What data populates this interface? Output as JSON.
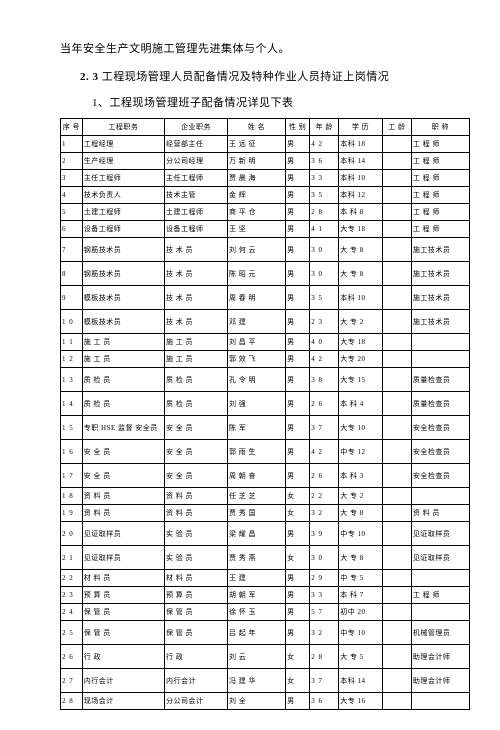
{
  "heading1": "当年安全生产文明施工管理先进集体与个人。",
  "heading2_prefix": "2. 3 ",
  "heading2": "工程现场管理人员配备情况及特种作业人员持证上岗情况",
  "heading3": "1、工程现场管理班子配备情况详见下表",
  "columns": [
    "序 号",
    "工程职务",
    "企业职务",
    "姓 名",
    "性 别",
    "年 龄",
    "学 历",
    "工 龄",
    "职 称"
  ],
  "rows": [
    {
      "seq": "1",
      "role": "工程经理",
      "corp": "经营部主任",
      "name": "王 远 征",
      "sex": "男",
      "age": "4 2",
      "edu": "本科 18",
      "exp": "",
      "title": "工 程 师"
    },
    {
      "seq": "2",
      "role": "生产经理",
      "corp": "分公司经理",
      "name": "万 新 明",
      "sex": "男",
      "age": "3 6",
      "edu": "本科 14",
      "exp": "",
      "title": "工 程 师"
    },
    {
      "seq": "3",
      "role": "主任工程师",
      "corp": "主任工程师",
      "name": "贾 晨 海",
      "sex": "男",
      "age": "3 3",
      "edu": "本科 10",
      "exp": "",
      "title": "工 程 师"
    },
    {
      "seq": "4",
      "role": "技术负责人",
      "corp": "技术主管",
      "name": "金    辉",
      "sex": "男",
      "age": "3 5",
      "edu": "本科 12",
      "exp": "",
      "title": "工 程 师"
    },
    {
      "seq": "5",
      "role": "土建工程师",
      "corp": "土建工程师",
      "name": "商 平 仓",
      "sex": "男",
      "age": "2 8",
      "edu": "本 科 8",
      "exp": "",
      "title": "工 程 师"
    },
    {
      "seq": "6",
      "role": "设备工程师",
      "corp": "设备工程师",
      "name": "王    坚",
      "sex": "男",
      "age": "4 1",
      "edu": "大专 18",
      "exp": "",
      "title": "工 程 师"
    },
    {
      "seq": "7",
      "role": "钢筋技术员",
      "corp": "技 术 员",
      "name": "刘 何 云",
      "sex": "男",
      "age": "3 0",
      "edu": "大 专 8",
      "exp": "",
      "title": "施工技术员",
      "tall": true
    },
    {
      "seq": "8",
      "role": "钢筋技术员",
      "corp": "技 术 员",
      "name": "陈 昭 元",
      "sex": "男",
      "age": "3 0",
      "edu": "大 专 8",
      "exp": "",
      "title": "施工技术员",
      "tall": true
    },
    {
      "seq": "9",
      "role": "模板技术员",
      "corp": "技 术 员",
      "name": "周 春 明",
      "sex": "男",
      "age": "3 5",
      "edu": "本科 10",
      "exp": "",
      "title": "施工技术员",
      "tall": true
    },
    {
      "seq": "1 0",
      "role": "模板技术员",
      "corp": "技 术 员",
      "name": "邓    建",
      "sex": "男",
      "age": "2 3",
      "edu": "大 专 2",
      "exp": "",
      "title": "施工技术员",
      "tall": true
    },
    {
      "seq": "1 1",
      "role": "施 工 员",
      "corp": "施 工 员",
      "name": "刘 昌 平",
      "sex": "男",
      "age": "4 0",
      "edu": "大专 18",
      "exp": "",
      "title": ""
    },
    {
      "seq": "1 2",
      "role": "施 工 员",
      "corp": "施 工 员",
      "name": "郭 效 飞",
      "sex": "男",
      "age": "4 2",
      "edu": "大专 20",
      "exp": "",
      "title": ""
    },
    {
      "seq": "1 3",
      "role": "质 检 员",
      "corp": "质 检 员",
      "name": "孔 令 明",
      "sex": "男",
      "age": "3 8",
      "edu": "大专 15",
      "exp": "",
      "title": "质量检查员",
      "tall": true
    },
    {
      "seq": "1 4",
      "role": "质  检  员",
      "corp": "质 检 员",
      "name": "刘    强",
      "sex": "男",
      "age": "2 6",
      "edu": "本 科 4",
      "exp": "",
      "title": "质量检查员",
      "tall": true
    },
    {
      "seq": "1 5",
      "role": "专职 HSE 监督 安全员",
      "corp": "安 全 员",
      "name": "陈    军",
      "sex": "男",
      "age": "3 7",
      "edu": "大专 10",
      "exp": "",
      "title": "安全检查员",
      "tall": true
    },
    {
      "seq": "1 6",
      "role": "安 全 员",
      "corp": "安 全 员",
      "name": "郭 雨 生",
      "sex": "男",
      "age": "4 2",
      "edu": "中专 12",
      "exp": "",
      "title": "安全检查员",
      "tall": true
    },
    {
      "seq": "1 7",
      "role": "安 全 员",
      "corp": "安 全 员",
      "name": "周 朝 奋",
      "sex": "男",
      "age": "2 6",
      "edu": "本 科 3",
      "exp": "",
      "title": "安全检查员",
      "tall": true
    },
    {
      "seq": "1 8",
      "role": "资 料 员",
      "corp": "资 料 员",
      "name": "任 芝 芝",
      "sex": "女",
      "age": "2 2",
      "edu": "大 专 2",
      "exp": "",
      "title": ""
    },
    {
      "seq": "1 9",
      "role": "资 料 员",
      "corp": "资 料 员",
      "name": "贾 秀 国",
      "sex": "女",
      "age": "3 2",
      "edu": "大 专 8",
      "exp": "",
      "title": "资 料 员"
    },
    {
      "seq": "2 0",
      "role": "见证取样员",
      "corp": "实 验 员",
      "name": "梁 耀 昌",
      "sex": "男",
      "age": "3 9",
      "edu": "中专 10",
      "exp": "",
      "title": "见证取样员",
      "tall": true
    },
    {
      "seq": "2 1",
      "role": "见证取样员",
      "corp": "实 验 员",
      "name": "贾 秀 燕",
      "sex": "女",
      "age": "3 0",
      "edu": "大 专 8",
      "exp": "",
      "title": "见证取样员",
      "tall": true
    },
    {
      "seq": "2 2",
      "role": "材 料 员",
      "corp": "材 料 员",
      "name": "王    建",
      "sex": "男",
      "age": "2 9",
      "edu": "中 专 5",
      "exp": "",
      "title": ""
    },
    {
      "seq": "2 3",
      "role": "预 算 员",
      "corp": "预 算 员",
      "name": "胡 朝 军",
      "sex": "男",
      "age": "3 3",
      "edu": "本 科 7",
      "exp": "",
      "title": "工 程 师"
    },
    {
      "seq": "2 4",
      "role": "保 管 员",
      "corp": "保 管 员",
      "name": "徐 怀 玉",
      "sex": "男",
      "age": "5 7",
      "edu": "初中 20",
      "exp": "",
      "title": ""
    },
    {
      "seq": "2 5",
      "role": "保 管 员",
      "corp": "保 管 员",
      "name": "吕 起 年",
      "sex": "男",
      "age": "3 2",
      "edu": "中专 10",
      "exp": "",
      "title": "机械管理员",
      "tall": true
    },
    {
      "seq": "2 6",
      "role": "行    政",
      "corp": "行    政",
      "name": "刘    云",
      "sex": "女",
      "age": "2 8",
      "edu": "大 专 5",
      "exp": "",
      "title": "助理会计师",
      "tall": true
    },
    {
      "seq": "2 7",
      "role": "内行会计",
      "corp": "内行会计",
      "name": "冯 建 华",
      "sex": "女",
      "age": "3 7",
      "edu": "本科 14",
      "exp": "",
      "title": "助理会计师",
      "tall": true
    },
    {
      "seq": "2 8",
      "role": "现场会计",
      "corp": "分公司会计",
      "name": "刘    全",
      "sex": "男",
      "age": "3 6",
      "edu": "大专 16",
      "exp": "",
      "title": ""
    }
  ]
}
